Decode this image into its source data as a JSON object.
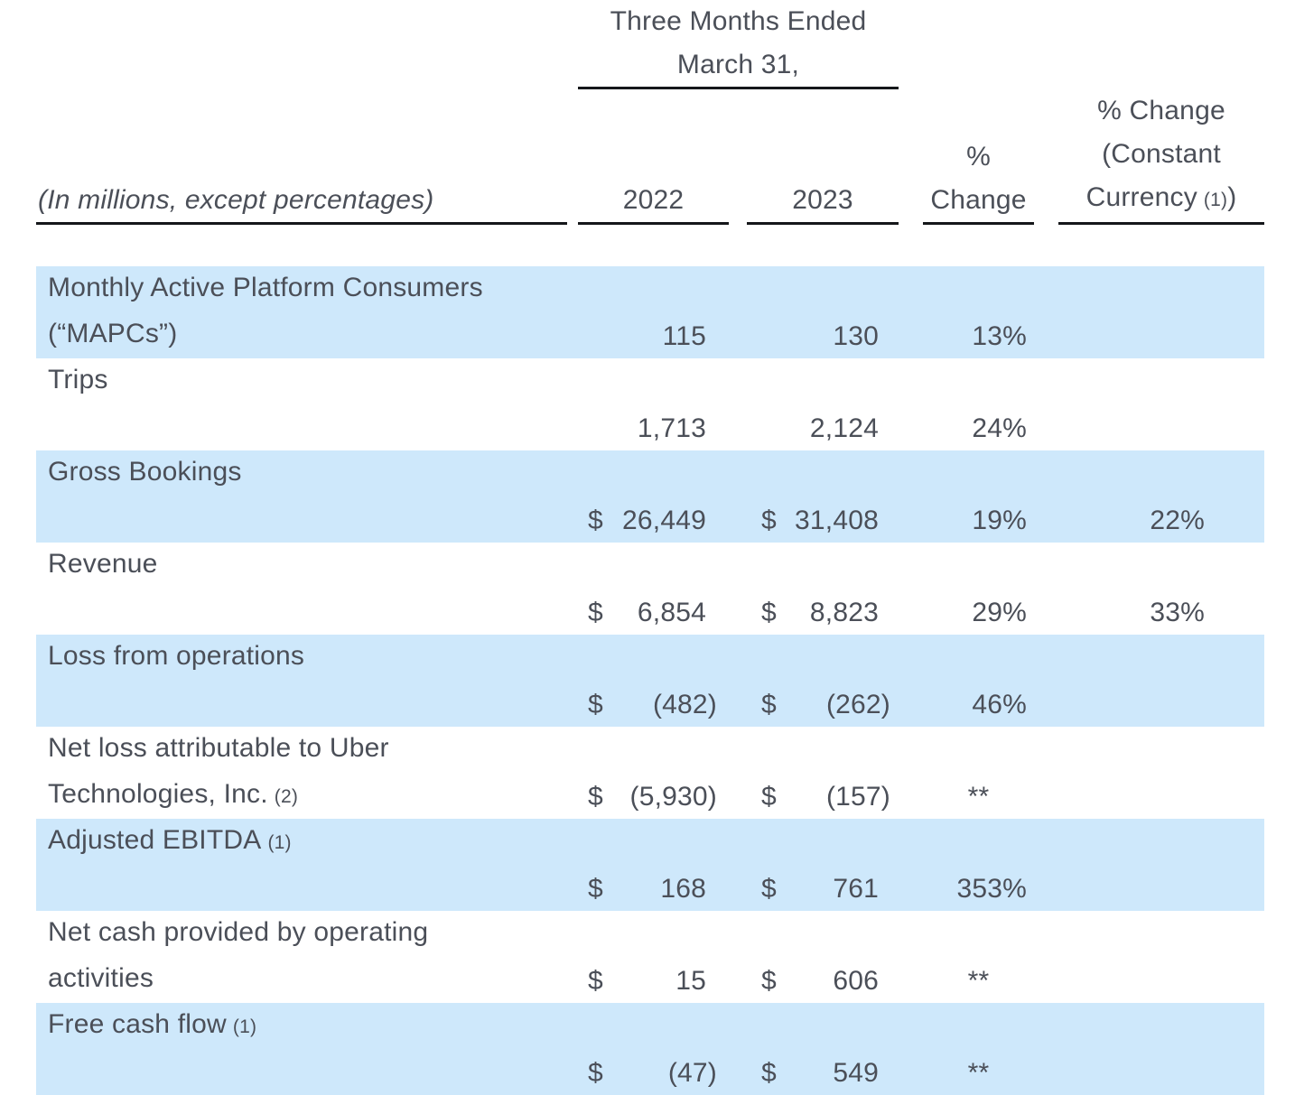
{
  "colors": {
    "row_highlight": "#cee8fb",
    "text": "#4b4f58",
    "rule": "#15171a"
  },
  "spanning_header": {
    "line1": "Three Months Ended",
    "line2": "March 31,"
  },
  "col_headers": {
    "label": "(In millions, except percentages)",
    "y2022": "2022",
    "y2023": "2023",
    "pct_l1": "%",
    "pct_l2": "Change",
    "cc_l1": "% Change",
    "cc_l2": "(Constant",
    "cc_l3": "Currency",
    "cc_l3_footnote": "(1)",
    "cc_l3_close": ")"
  },
  "rows": [
    {
      "l1": "Monthly Active Platform Consumers",
      "fn1": "",
      "l2": "(“MAPCs”)",
      "fn2": "",
      "cur22": "",
      "v22": "115",
      "cur23": "",
      "v23": "130",
      "pct": "13%",
      "cc": ""
    },
    {
      "l1": "Trips",
      "fn1": "",
      "l2": "",
      "fn2": "",
      "cur22": "",
      "v22": "1,713",
      "cur23": "",
      "v23": "2,124",
      "pct": "24%",
      "cc": ""
    },
    {
      "l1": "Gross Bookings",
      "fn1": "",
      "l2": "",
      "fn2": "",
      "cur22": "$",
      "v22": "26,449",
      "cur23": "$",
      "v23": "31,408",
      "pct": "19%",
      "cc": "22%"
    },
    {
      "l1": "Revenue",
      "fn1": "",
      "l2": "",
      "fn2": "",
      "cur22": "$",
      "v22": "6,854",
      "cur23": "$",
      "v23": "8,823",
      "pct": "29%",
      "cc": "33%"
    },
    {
      "l1": "Loss from operations",
      "fn1": "",
      "l2": "",
      "fn2": "",
      "cur22": "$",
      "v22": "(482)",
      "cur23": "$",
      "v23": "(262)",
      "pct": "46%",
      "cc": ""
    },
    {
      "l1": "Net loss attributable to Uber",
      "fn1": "",
      "l2": "Technologies, Inc.",
      "fn2": "(2)",
      "cur22": "$",
      "v22": "(5,930)",
      "cur23": "$",
      "v23": "(157)",
      "pct": "**",
      "cc": ""
    },
    {
      "l1": "Adjusted EBITDA",
      "fn1": "(1)",
      "l2": "",
      "fn2": "",
      "cur22": "$",
      "v22": "168",
      "cur23": "$",
      "v23": "761",
      "pct": "353%",
      "cc": ""
    },
    {
      "l1": "Net cash provided by operating",
      "fn1": "",
      "l2": "activities",
      "fn2": "",
      "cur22": "$",
      "v22": "15",
      "cur23": "$",
      "v23": "606",
      "pct": "**",
      "cc": ""
    },
    {
      "l1": "Free cash flow",
      "fn1": "(1)",
      "l2": "",
      "fn2": "",
      "cur22": "$",
      "v22": "(47)",
      "cur23": "$",
      "v23": "549",
      "pct": "**",
      "cc": ""
    }
  ]
}
